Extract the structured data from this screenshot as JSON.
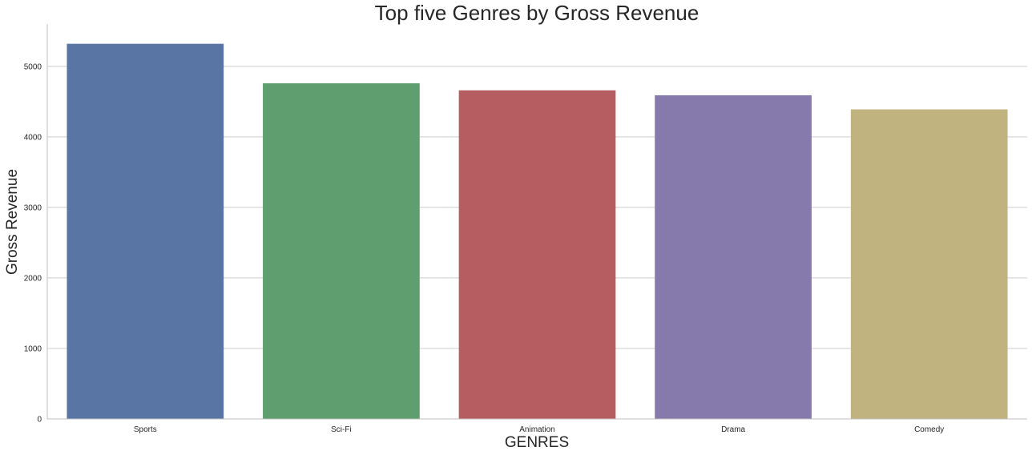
{
  "chart_data": {
    "type": "bar",
    "title": "Top five Genres by Gross Revenue",
    "xlabel": "GENRES",
    "ylabel": "Gross Revenue",
    "categories": [
      "Sports",
      "Sci-Fi",
      "Animation",
      "Drama",
      "Comedy"
    ],
    "values": [
      5320,
      4760,
      4660,
      4590,
      4390
    ],
    "colors": [
      "#5975a4",
      "#5f9e6e",
      "#b55d60",
      "#857aab",
      "#c1b37f"
    ],
    "ylim": [
      0,
      5600
    ],
    "yticks": [
      0,
      1000,
      2000,
      3000,
      4000,
      5000
    ],
    "ytick_labels": [
      "0",
      "1000",
      "2000",
      "3000",
      "4000",
      "5000"
    ],
    "grid": "horizontal",
    "legend": "none"
  }
}
